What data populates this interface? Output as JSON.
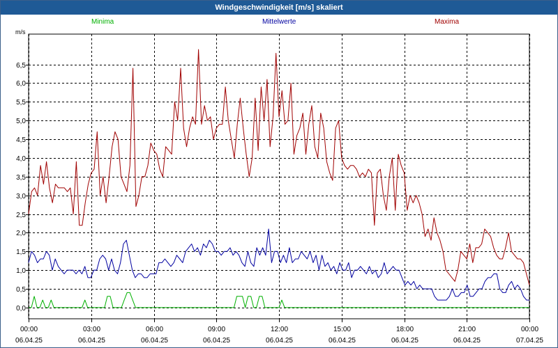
{
  "window": {
    "title": "Windgeschwindigkeit [m/s] skaliert"
  },
  "legend": {
    "minima": "Minima",
    "mittelwerte": "Mittelwerte",
    "maxima": "Maxima"
  },
  "colors": {
    "titlebar": "#1f5a96",
    "minima": "#00b000",
    "mittelwerte": "#0000a0",
    "maxima": "#a00000",
    "grid": "#000000"
  },
  "chart_data": {
    "type": "line",
    "title": "Windgeschwindigkeit [m/s] skaliert",
    "ylabel": "m/s",
    "xlabel": "",
    "ylim": [
      -0.3,
      7.2
    ],
    "xlim": [
      0,
      24
    ],
    "grid": true,
    "legend_placement": "top",
    "y_ticks": [
      "0,0",
      "0,5",
      "1,0",
      "1,5",
      "2,0",
      "2,5",
      "3,0",
      "3,5",
      "4,0",
      "4,5",
      "5,0",
      "5,5",
      "6,0",
      "6,5"
    ],
    "x_ticks": [
      {
        "time": "00:00",
        "date": "06.04.25"
      },
      {
        "time": "03:00",
        "date": "06.04.25"
      },
      {
        "time": "06:00",
        "date": "06.04.25"
      },
      {
        "time": "09:00",
        "date": "06.04.25"
      },
      {
        "time": "12:00",
        "date": "06.04.25"
      },
      {
        "time": "15:00",
        "date": "06.04.25"
      },
      {
        "time": "18:00",
        "date": "06.04.25"
      },
      {
        "time": "21:00",
        "date": "06.04.25"
      },
      {
        "time": "00:00",
        "date": "07.04.25"
      }
    ],
    "series": [
      {
        "name": "Maxima",
        "color": "#a00000",
        "values": [
          2.5,
          3.1,
          3.2,
          3.0,
          3.8,
          3.3,
          3.9,
          3.2,
          2.8,
          3.3,
          3.2,
          3.2,
          3.2,
          3.1,
          3.2,
          2.5,
          3.9,
          2.2,
          2.2,
          2.8,
          3.3,
          3.6,
          3.7,
          4.7,
          3.0,
          3.5,
          2.8,
          3.5,
          4.3,
          4.7,
          4.5,
          3.5,
          3.3,
          3.1,
          3.8,
          6.4,
          2.7,
          3.0,
          3.5,
          3.5,
          3.8,
          4.4,
          4.2,
          4.1,
          3.7,
          3.5,
          4.3,
          4.2,
          4.1,
          5.5,
          5.0,
          6.4,
          4.8,
          4.3,
          4.8,
          5.1,
          4.9,
          6.9,
          4.9,
          5.4,
          5.0,
          5.1,
          4.5,
          4.8,
          4.9,
          4.9,
          5.9,
          5.0,
          4.5,
          4.0,
          4.9,
          5.6,
          4.8,
          4.1,
          3.5,
          4.0,
          5.6,
          4.2,
          5.9,
          5.0,
          6.1,
          4.3,
          5.1,
          6.8,
          5.1,
          5.8,
          4.9,
          5.0,
          6.0,
          4.1,
          4.6,
          4.8,
          5.2,
          4.1,
          4.9,
          5.4,
          4.3,
          4.0,
          5.2,
          4.8,
          3.9,
          3.6,
          3.4,
          4.8,
          5.0,
          4.0,
          3.8,
          3.7,
          3.8,
          3.8,
          3.7,
          3.5,
          3.6,
          3.5,
          3.7,
          3.6,
          2.2,
          3.6,
          3.7,
          3.0,
          2.6,
          3.5,
          4.0,
          2.6,
          4.1,
          3.8,
          3.6,
          2.6,
          3.0,
          2.8,
          3.0,
          2.8,
          2.5,
          1.9,
          2.1,
          1.8,
          2.4,
          2.0,
          1.8,
          1.5,
          1.0,
          0.9,
          0.8,
          0.7,
          1.0,
          1.5,
          1.4,
          1.3,
          1.7,
          1.2,
          1.6,
          1.6,
          1.7,
          2.1,
          2.0,
          1.9,
          1.6,
          1.4,
          1.3,
          1.3,
          1.6,
          2.0,
          1.5,
          1.4,
          1.3,
          1.3,
          1.2,
          0.9,
          0.6
        ]
      },
      {
        "name": "Mittelwerte",
        "color": "#0000a0",
        "values": [
          1.2,
          1.5,
          1.4,
          1.2,
          1.3,
          1.3,
          1.5,
          1.4,
          1.0,
          1.3,
          1.1,
          1.0,
          0.9,
          1.0,
          1.0,
          1.0,
          0.9,
          1.0,
          0.9,
          1.1,
          0.8,
          0.8,
          1.0,
          1.0,
          1.3,
          1.4,
          1.3,
          1.0,
          1.3,
          1.0,
          0.9,
          1.2,
          1.7,
          1.8,
          1.4,
          1.0,
          0.8,
          0.9,
          0.9,
          0.8,
          0.8,
          0.9,
          0.9,
          0.9,
          1.2,
          1.2,
          1.3,
          1.2,
          1.1,
          1.2,
          1.4,
          1.3,
          1.2,
          1.5,
          1.6,
          1.7,
          1.5,
          1.6,
          1.4,
          1.7,
          1.6,
          1.8,
          1.7,
          1.5,
          1.5,
          1.4,
          1.5,
          1.5,
          1.6,
          1.4,
          1.5,
          1.4,
          1.2,
          1.1,
          1.5,
          1.2,
          1.1,
          1.6,
          1.4,
          1.6,
          1.4,
          2.1,
          1.2,
          1.5,
          1.5,
          1.2,
          1.4,
          1.2,
          1.6,
          1.2,
          1.3,
          1.3,
          1.5,
          1.4,
          1.3,
          1.5,
          1.2,
          1.4,
          1.0,
          1.4,
          1.1,
          1.2,
          1.0,
          1.1,
          0.9,
          1.2,
          1.0,
          1.0,
          1.2,
          0.8,
          1.0,
          1.0,
          1.1,
          1.0,
          0.9,
          1.1,
          0.9,
          1.0,
          0.8,
          0.9,
          1.2,
          0.9,
          1.0,
          1.1,
          1.0,
          1.0,
          0.8,
          0.6,
          0.7,
          0.6,
          0.7,
          0.5,
          0.6,
          0.5,
          0.5,
          0.5,
          0.5,
          0.3,
          0.2,
          0.2,
          0.2,
          0.2,
          0.3,
          0.5,
          0.3,
          0.3,
          0.4,
          0.4,
          0.6,
          0.3,
          0.3,
          0.4,
          0.5,
          0.5,
          0.7,
          0.8,
          0.8,
          0.9,
          0.9,
          0.5,
          0.4,
          0.4,
          0.6,
          0.7,
          0.5,
          0.6,
          0.5,
          0.3,
          0.2,
          0.2
        ]
      },
      {
        "name": "Minima",
        "color": "#00b000",
        "values": [
          0.0,
          0.0,
          0.3,
          0.0,
          0.0,
          0.2,
          0.0,
          0.0,
          0.2,
          0.0,
          0.0,
          0.0,
          0.0,
          0.0,
          0.0,
          0.0,
          0.0,
          0.0,
          0.0,
          0.0,
          0.2,
          0.0,
          0.0,
          0.0,
          0.0,
          0.0,
          0.0,
          0.0,
          0.3,
          0.3,
          0.0,
          0.0,
          0.0,
          0.0,
          0.2,
          0.4,
          0.4,
          0.2,
          0.0,
          0.0,
          0.0,
          0.0,
          0.0,
          0.0,
          0.0,
          0.0,
          0.0,
          0.0,
          0.0,
          0.0,
          0.0,
          0.0,
          0.0,
          0.0,
          0.0,
          0.0,
          0.0,
          0.0,
          0.0,
          0.0,
          0.0,
          0.0,
          0.0,
          0.0,
          0.0,
          0.0,
          0.0,
          0.0,
          0.0,
          0.0,
          0.0,
          0.0,
          0.0,
          0.0,
          0.3,
          0.3,
          0.3,
          0.0,
          0.3,
          0.3,
          0.0,
          0.0,
          0.3,
          0.3,
          0.0,
          0.0,
          0.0,
          0.0,
          0.0,
          0.0,
          0.2,
          0.0,
          0.0,
          0.0,
          0.0,
          0.0,
          0.0,
          0.0,
          0.0,
          0.0,
          0.0,
          0.0,
          0.0,
          0.0,
          0.0,
          0.0,
          0.0,
          0.0,
          0.0,
          0.0,
          0.0,
          0.0,
          0.0,
          0.0,
          0.0,
          0.0,
          0.0,
          0.0,
          0.0,
          0.0,
          0.0,
          0.0,
          0.0,
          0.0,
          0.0,
          0.0,
          0.0,
          0.0,
          0.0,
          0.0,
          0.0,
          0.0,
          0.0,
          0.0,
          0.0,
          0.0,
          0.0,
          0.0,
          0.0,
          0.0,
          0.0,
          0.0,
          0.0,
          0.0,
          0.0,
          0.0,
          0.0,
          0.0,
          0.0,
          0.0,
          0.0,
          0.0,
          0.0,
          0.0,
          0.0,
          0.0,
          0.0,
          0.0,
          0.0,
          0.0,
          0.0,
          0.0,
          0.0,
          0.0,
          0.0,
          0.0,
          0.0,
          0.0,
          0.0,
          0.0,
          0.0,
          0.0,
          0.0,
          0.0,
          0.0,
          0.0,
          0.0,
          0.0,
          0.0
        ]
      }
    ]
  }
}
